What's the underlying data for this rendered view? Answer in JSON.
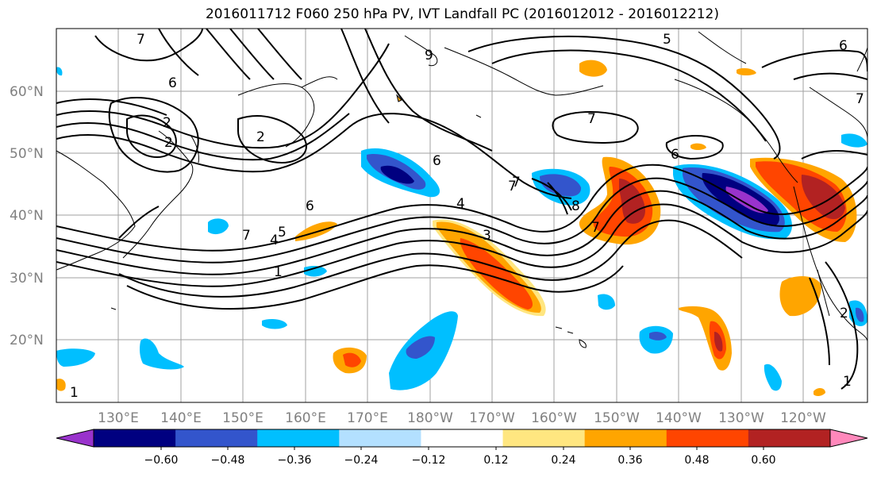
{
  "title": "2016011712 F060 250 hPa PV, IVT Landfall PC (2016012012 - 2016012212)",
  "map": {
    "lat_labels": [
      "60°N",
      "50°N",
      "40°N",
      "30°N",
      "20°N"
    ],
    "lon_labels": [
      "130°E",
      "140°E",
      "150°E",
      "160°E",
      "170°E",
      "180°W",
      "170°W",
      "160°W",
      "150°W",
      "140°W",
      "130°W",
      "120°W"
    ],
    "contour_labels": [
      "7",
      "6",
      "2",
      "2",
      "9",
      "2",
      "6",
      "7",
      "5",
      "6",
      "7",
      "4",
      "6",
      "7",
      "5",
      "4",
      "1",
      "3",
      "7",
      "8",
      "6",
      "7",
      "1",
      "2",
      "7",
      "1"
    ]
  },
  "colorbar": {
    "ticks": [
      "−0.60",
      "−0.48",
      "−0.36",
      "−0.24",
      "−0.12",
      "0.12",
      "0.24",
      "0.36",
      "0.48",
      "0.60"
    ],
    "colors": [
      "#9933cc",
      "#000080",
      "#3355cc",
      "#00bfff",
      "#b3e0ff",
      "#ffffff",
      "#ffe680",
      "#ffa500",
      "#ff4500",
      "#b22222",
      "#ff88bb"
    ]
  },
  "colors": {
    "grid": "#a0a0a0",
    "coast": "#000000",
    "contour": "#000000",
    "axis_label": "#808080"
  }
}
